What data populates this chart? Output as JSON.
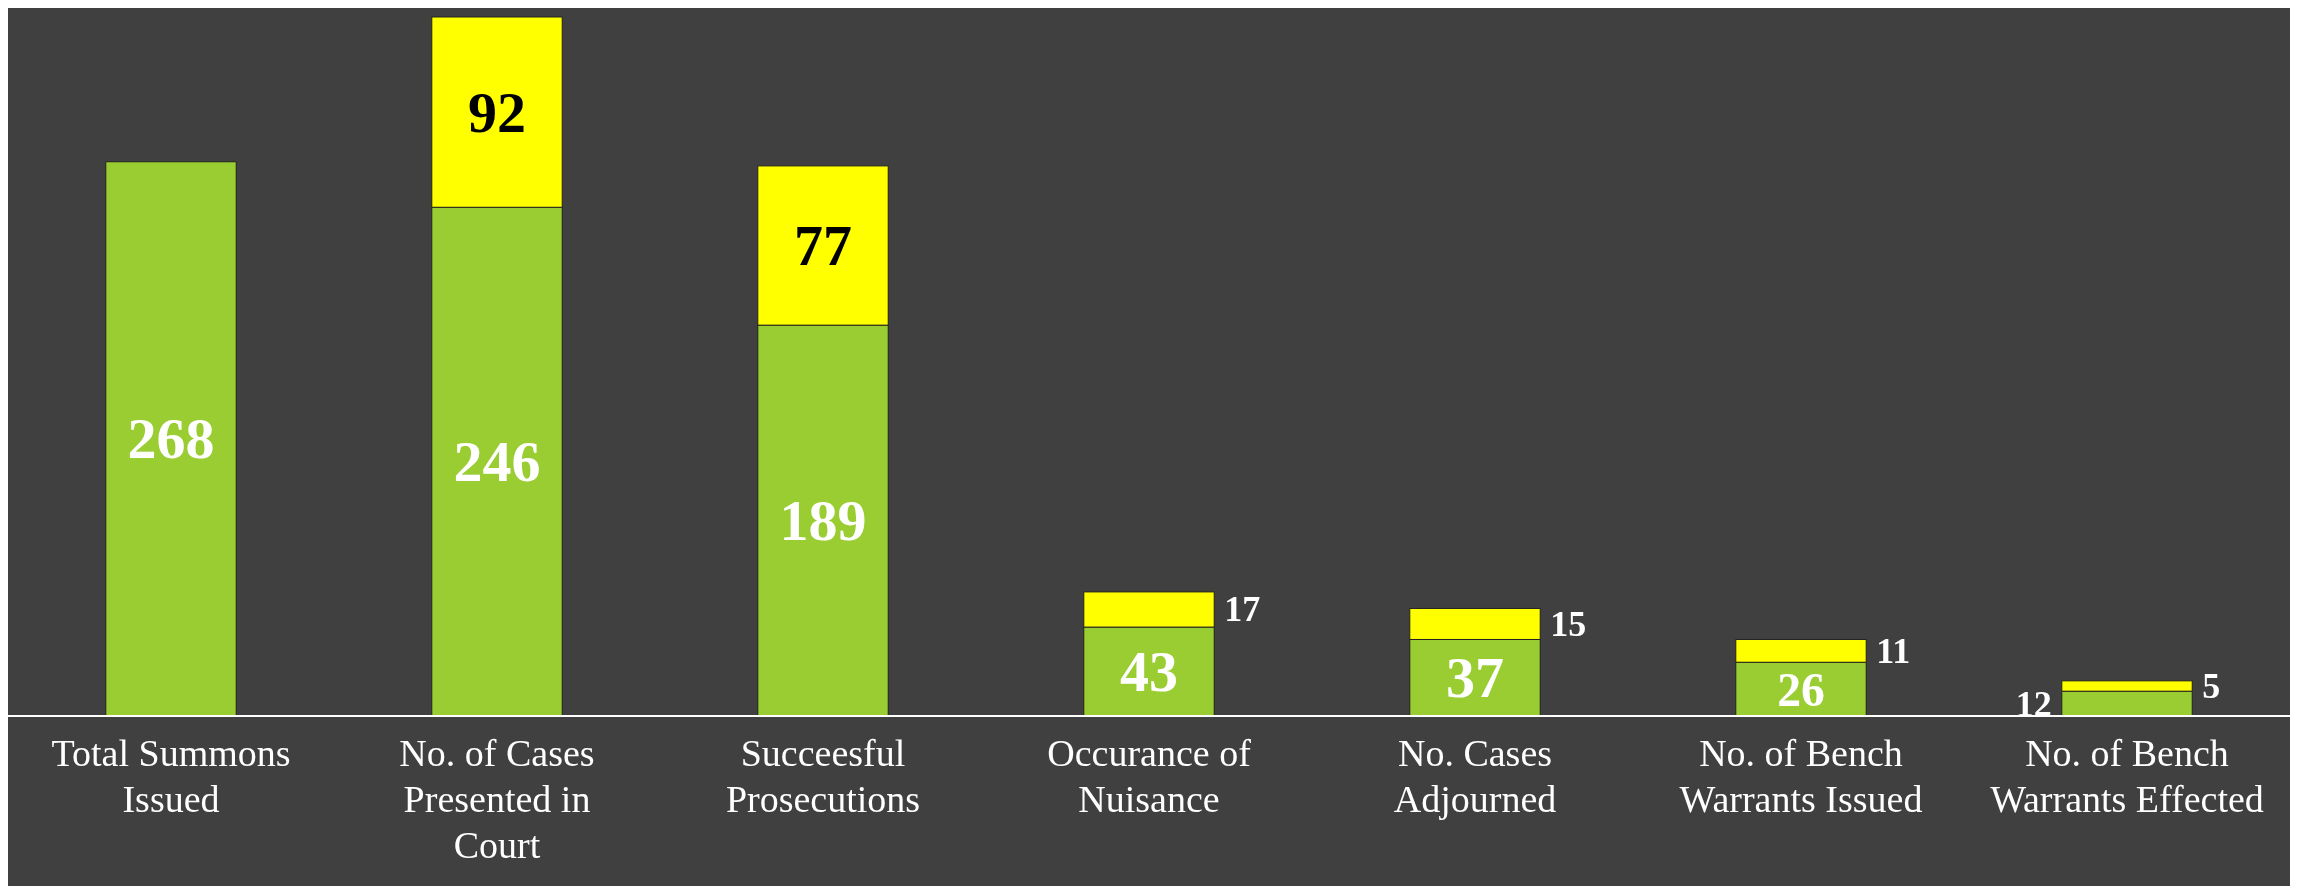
{
  "chart_data": {
    "type": "bar",
    "stacked": true,
    "data_labels": true,
    "categories": [
      "Total Summons Issued",
      "No. of Cases Presented in Court",
      "Succeesful Prosecutions",
      "Occurance of Nuisance",
      "No. Cases Adjourned",
      "No. of Bench Warrants Issued",
      "No. of Bench Warrants Effected"
    ],
    "series": [
      {
        "color": "#9acd32",
        "values": [
          268,
          246,
          189,
          43,
          37,
          26,
          12
        ]
      },
      {
        "color": "#ffff00",
        "values": [
          null,
          92,
          77,
          17,
          15,
          11,
          5
        ]
      }
    ]
  }
}
